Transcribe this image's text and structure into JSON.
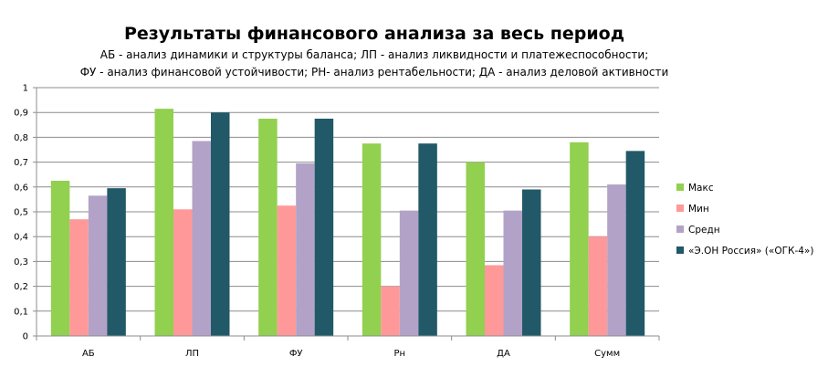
{
  "chart_data": {
    "type": "bar",
    "title": "Результаты финансового анализа за весь период",
    "subtitle_lines": [
      "АБ - анализ динамики и структуры баланса;  ЛП - анализ ликвидности и платежеспособности;",
      "ФУ - анализ финансовой устойчивости; РН- анализ рентабельности; ДА - анализ деловой активности"
    ],
    "categories": [
      "АБ",
      "ЛП",
      "ФУ",
      "Рн",
      "ДА",
      "Сумм"
    ],
    "series": [
      {
        "name": "Макс",
        "color": "#92d050",
        "values": [
          0.625,
          0.915,
          0.875,
          0.775,
          0.7,
          0.78
        ]
      },
      {
        "name": "Мин",
        "color": "#ff9999",
        "values": [
          0.47,
          0.51,
          0.525,
          0.2,
          0.285,
          0.4
        ]
      },
      {
        "name": "Средн",
        "color": "#b3a2c7",
        "values": [
          0.565,
          0.785,
          0.695,
          0.505,
          0.505,
          0.61
        ]
      },
      {
        "name": "«Э.ОН Россия» («ОГК-4»)",
        "color": "#215968",
        "values": [
          0.595,
          0.9,
          0.875,
          0.775,
          0.59,
          0.745
        ]
      }
    ],
    "ylim": [
      0,
      1
    ],
    "yticks": [
      "0",
      "0,1",
      "0,2",
      "0,3",
      "0,4",
      "0,5",
      "0,6",
      "0,7",
      "0,8",
      "0,9",
      "1"
    ],
    "grid": true,
    "legend_position": "right"
  }
}
